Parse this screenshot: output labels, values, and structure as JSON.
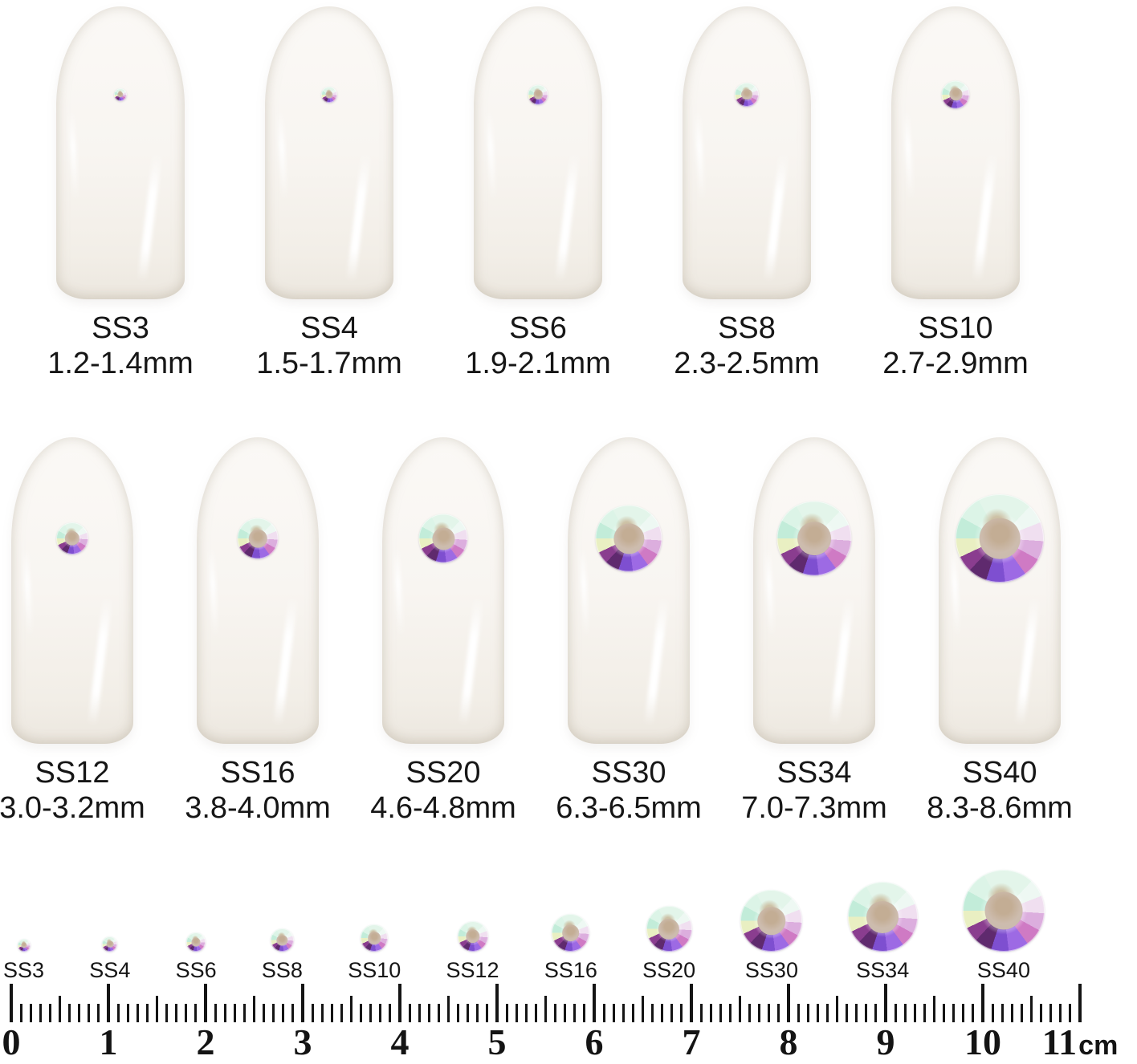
{
  "row1": [
    {
      "code": "SS3",
      "range": "1.2-1.4mm",
      "mm": 1.3
    },
    {
      "code": "SS4",
      "range": "1.5-1.7mm",
      "mm": 1.6
    },
    {
      "code": "SS6",
      "range": "1.9-2.1mm",
      "mm": 2.0
    },
    {
      "code": "SS8",
      "range": "2.3-2.5mm",
      "mm": 2.4
    },
    {
      "code": "SS10",
      "range": "2.7-2.9mm",
      "mm": 2.8
    }
  ],
  "row2": [
    {
      "code": "SS12",
      "range": "3.0-3.2mm",
      "mm": 3.1
    },
    {
      "code": "SS16",
      "range": "3.8-4.0mm",
      "mm": 3.9
    },
    {
      "code": "SS20",
      "range": "4.6-4.8mm",
      "mm": 4.7
    },
    {
      "code": "SS30",
      "range": "6.3-6.5mm",
      "mm": 6.4
    },
    {
      "code": "SS34",
      "range": "7.0-7.3mm",
      "mm": 7.15
    },
    {
      "code": "SS40",
      "range": "8.3-8.6mm",
      "mm": 8.45
    }
  ],
  "actual_size_row": [
    {
      "code": "SS3",
      "mm": 1.3
    },
    {
      "code": "SS4",
      "mm": 1.6
    },
    {
      "code": "SS6",
      "mm": 2.0
    },
    {
      "code": "SS8",
      "mm": 2.4
    },
    {
      "code": "SS10",
      "mm": 2.8
    },
    {
      "code": "SS12",
      "mm": 3.1
    },
    {
      "code": "SS16",
      "mm": 3.9
    },
    {
      "code": "SS20",
      "mm": 4.7
    },
    {
      "code": "SS30",
      "mm": 6.4
    },
    {
      "code": "SS34",
      "mm": 7.15
    },
    {
      "code": "SS40",
      "mm": 8.45
    }
  ],
  "ruler": {
    "numbers": [
      "0",
      "1",
      "2",
      "3",
      "4",
      "5",
      "6",
      "7",
      "8",
      "9",
      "10",
      "11"
    ],
    "unit": "cm",
    "cm_total": 11
  },
  "colors": {
    "background": "#ffffff",
    "text": "#161616",
    "ruler_ink": "#141414",
    "nail_base": "#f8f5f1",
    "stone_mint": "#e3f5ea",
    "stone_aqua": "#c2ecd9",
    "stone_pink": "#dcaede",
    "stone_magenta": "#cf7ac4",
    "stone_violet": "#9d6ae4",
    "stone_deep_violet": "#7e4fd0",
    "stone_dark_plum": "#5f2a6e",
    "stone_plum": "#8a3d8f",
    "stone_chartreuse": "#e9efc2",
    "stone_center": "#cdbcae"
  }
}
